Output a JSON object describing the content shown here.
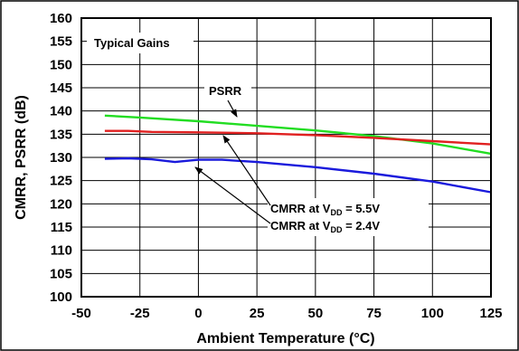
{
  "chart_data": {
    "type": "line",
    "xlabel": "Ambient Temperature (°C)",
    "ylabel": "CMRR, PSRR (dB)",
    "xlim": [
      -50,
      125
    ],
    "ylim": [
      100,
      160
    ],
    "x_ticks": [
      "-50",
      "-25",
      "0",
      "25",
      "50",
      "75",
      "100",
      "125"
    ],
    "y_ticks": [
      "100",
      "105",
      "110",
      "115",
      "120",
      "125",
      "130",
      "135",
      "140",
      "145",
      "150",
      "155",
      "160"
    ],
    "grid": true,
    "note": "Typical Gains",
    "series": [
      {
        "name": "PSRR",
        "color": "#22dd22",
        "points": [
          [
            -40,
            139.0
          ],
          [
            -25,
            138.6
          ],
          [
            0,
            137.8
          ],
          [
            25,
            136.8
          ],
          [
            50,
            135.8
          ],
          [
            75,
            134.6
          ],
          [
            100,
            133.0
          ],
          [
            125,
            130.8
          ]
        ]
      },
      {
        "name": "CMRR at VDD = 5.5V",
        "color": "#e02020",
        "points": [
          [
            -40,
            135.7
          ],
          [
            -30,
            135.7
          ],
          [
            -20,
            135.5
          ],
          [
            0,
            135.4
          ],
          [
            25,
            135.2
          ],
          [
            50,
            134.8
          ],
          [
            75,
            134.2
          ],
          [
            100,
            133.5
          ],
          [
            125,
            132.8
          ]
        ]
      },
      {
        "name": "CMRR at VDD = 2.4V",
        "color": "#1a1adc",
        "points": [
          [
            -40,
            129.7
          ],
          [
            -30,
            129.8
          ],
          [
            -20,
            129.6
          ],
          [
            -10,
            129.0
          ],
          [
            0,
            129.5
          ],
          [
            10,
            129.5
          ],
          [
            25,
            129.0
          ],
          [
            50,
            127.9
          ],
          [
            75,
            126.5
          ],
          [
            100,
            124.8
          ],
          [
            125,
            122.5
          ]
        ]
      }
    ],
    "annotations": {
      "psrr": "PSRR",
      "cmrr_a_prefix": "CMRR at V",
      "cmrr_a_sub": "DD",
      "cmrr_a_suffix": " = 5.5V",
      "cmrr_b_prefix": "CMRR at V",
      "cmrr_b_sub": "DD",
      "cmrr_b_suffix": " = 2.4V"
    }
  }
}
